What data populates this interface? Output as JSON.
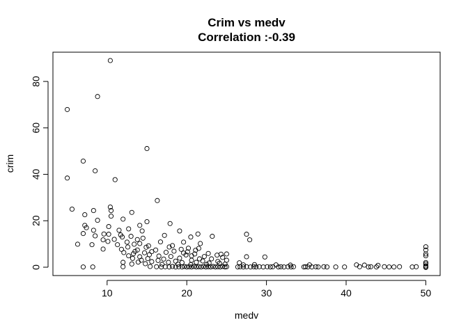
{
  "chart_data": {
    "type": "scatter",
    "title": "Crim vs medv",
    "subtitle": "Correlation :-0.39",
    "xlabel": "medv",
    "ylabel": "crim",
    "xlim": [
      3.2,
      51.8
    ],
    "ylim": [
      -3.6,
      92.6
    ],
    "x_ticks": [
      10,
      20,
      30,
      40,
      50
    ],
    "y_ticks": [
      0,
      20,
      40,
      60,
      80
    ],
    "x_tick_labels": [
      "10",
      "20",
      "30",
      "40",
      "50"
    ],
    "y_tick_labels": [
      "0",
      "20",
      "40",
      "60",
      "80"
    ],
    "grid": false,
    "legend": "none",
    "marker": "open-circle",
    "point_color": "#000000",
    "points": [
      [
        10.4,
        89.0
      ],
      [
        8.8,
        73.5
      ],
      [
        5.0,
        67.9
      ],
      [
        15.0,
        51.1
      ],
      [
        7.0,
        45.7
      ],
      [
        8.5,
        41.5
      ],
      [
        5.0,
        38.4
      ],
      [
        11.0,
        37.7
      ],
      [
        16.3,
        28.7
      ],
      [
        5.6,
        25.0
      ],
      [
        10.4,
        25.9
      ],
      [
        10.5,
        24.4
      ],
      [
        8.3,
        24.4
      ],
      [
        13.1,
        23.6
      ],
      [
        7.2,
        22.6
      ],
      [
        10.5,
        22.0
      ],
      [
        8.8,
        20.2
      ],
      [
        12.0,
        20.7
      ],
      [
        15.0,
        19.6
      ],
      [
        17.9,
        18.8
      ],
      [
        7.2,
        18.0
      ],
      [
        14.1,
        18.0
      ],
      [
        10.2,
        17.5
      ],
      [
        7.4,
        17.0
      ],
      [
        12.7,
        16.5
      ],
      [
        8.3,
        15.9
      ],
      [
        11.5,
        15.9
      ],
      [
        14.4,
        15.6
      ],
      [
        19.1,
        15.6
      ],
      [
        7.0,
        14.5
      ],
      [
        9.6,
        14.3
      ],
      [
        10.2,
        14.2
      ],
      [
        11.7,
        13.9
      ],
      [
        17.2,
        13.7
      ],
      [
        21.4,
        14.3
      ],
      [
        27.5,
        14.2
      ],
      [
        8.5,
        13.5
      ],
      [
        11.9,
        13.0
      ],
      [
        13.0,
        13.3
      ],
      [
        20.5,
        13.0
      ],
      [
        23.2,
        13.3
      ],
      [
        10.9,
        12.0
      ],
      [
        14.5,
        12.5
      ],
      [
        9.5,
        11.8
      ],
      [
        13.8,
        11.9
      ],
      [
        27.9,
        11.8
      ],
      [
        10.1,
        11.1
      ],
      [
        12.5,
        10.8
      ],
      [
        14.1,
        10.2
      ],
      [
        16.7,
        10.9
      ],
      [
        19.6,
        10.8
      ],
      [
        21.7,
        10.2
      ],
      [
        6.3,
        9.9
      ],
      [
        8.1,
        9.7
      ],
      [
        11.3,
        9.7
      ],
      [
        13.4,
        9.9
      ],
      [
        15.2,
        9.2
      ],
      [
        18.2,
        9.3
      ],
      [
        12.6,
        8.7
      ],
      [
        14.9,
        8.6
      ],
      [
        17.8,
        8.7
      ],
      [
        20.2,
        8.2
      ],
      [
        21.5,
        8.1
      ],
      [
        9.5,
        7.8
      ],
      [
        11.8,
        7.7
      ],
      [
        13.8,
        7.4
      ],
      [
        16.1,
        7.4
      ],
      [
        19.3,
        7.7
      ],
      [
        21.1,
        7.3
      ],
      [
        13.5,
        6.8
      ],
      [
        15.6,
        6.7
      ],
      [
        18.4,
        6.9
      ],
      [
        20.1,
        6.6
      ],
      [
        12.1,
        6.3
      ],
      [
        14.7,
        6.2
      ],
      [
        17.4,
        6.4
      ],
      [
        19.6,
        6.1
      ],
      [
        22.7,
        5.9
      ],
      [
        24.3,
        5.6
      ],
      [
        13.3,
        5.8
      ],
      [
        15.3,
        5.4
      ],
      [
        19.9,
        5.3
      ],
      [
        21.0,
        5.7
      ],
      [
        23.8,
        5.2
      ],
      [
        25.0,
        5.7
      ],
      [
        12.7,
        4.9
      ],
      [
        14.1,
        4.5
      ],
      [
        16.5,
        4.8
      ],
      [
        18.0,
        4.6
      ],
      [
        20.6,
        4.9
      ],
      [
        22.2,
        4.6
      ],
      [
        24.5,
        4.2
      ],
      [
        27.5,
        4.5
      ],
      [
        29.8,
        4.4
      ],
      [
        13.2,
        3.8
      ],
      [
        15.1,
        3.7
      ],
      [
        17.1,
        3.5
      ],
      [
        19.1,
        3.9
      ],
      [
        21.6,
        3.6
      ],
      [
        23.1,
        3.6
      ],
      [
        14.3,
        3.0
      ],
      [
        16.4,
        2.9
      ],
      [
        18.6,
        2.6
      ],
      [
        20.6,
        3.0
      ],
      [
        22.0,
        2.7
      ],
      [
        23.9,
        2.5
      ],
      [
        25.0,
        3.0
      ],
      [
        12.0,
        2.1
      ],
      [
        13.9,
        2.2
      ],
      [
        15.6,
        2.4
      ],
      [
        17.7,
        2.1
      ],
      [
        19.4,
        2.0
      ],
      [
        21.2,
        2.1
      ],
      [
        22.8,
        1.8
      ],
      [
        24.1,
        1.7
      ],
      [
        26.6,
        1.9
      ],
      [
        13.1,
        1.4
      ],
      [
        14.8,
        1.5
      ],
      [
        16.9,
        1.2
      ],
      [
        18.9,
        1.3
      ],
      [
        20.5,
        1.1
      ],
      [
        22.5,
        1.2
      ],
      [
        24.8,
        1.3
      ],
      [
        27.1,
        1.0
      ],
      [
        28.5,
        1.1
      ],
      [
        31.2,
        1.0
      ],
      [
        33.0,
        0.9
      ],
      [
        35.4,
        1.0
      ],
      [
        41.3,
        1.0
      ],
      [
        42.3,
        0.9
      ],
      [
        44.0,
        0.8
      ],
      [
        50.0,
        8.8
      ],
      [
        50.0,
        7.4
      ],
      [
        50.0,
        5.7
      ],
      [
        50.0,
        4.9
      ],
      [
        50.0,
        2.0
      ],
      [
        50.0,
        1.4
      ],
      [
        50.0,
        0.6
      ],
      [
        50.0,
        0.2
      ],
      [
        7.0,
        0.1
      ],
      [
        8.2,
        0.1
      ],
      [
        12.0,
        0.2
      ],
      [
        15.4,
        0.3
      ],
      [
        16.2,
        0.2
      ],
      [
        16.8,
        0.1
      ],
      [
        17.3,
        0.2
      ],
      [
        17.8,
        0.1
      ],
      [
        18.2,
        0.3
      ],
      [
        18.6,
        0.1
      ],
      [
        19.0,
        0.2
      ],
      [
        19.4,
        0.1
      ],
      [
        19.7,
        0.3
      ],
      [
        20.0,
        0.1
      ],
      [
        20.3,
        0.2
      ],
      [
        20.6,
        0.1
      ],
      [
        20.9,
        0.3
      ],
      [
        21.2,
        0.1
      ],
      [
        21.5,
        0.2
      ],
      [
        21.8,
        0.1
      ],
      [
        22.1,
        0.3
      ],
      [
        22.4,
        0.1
      ],
      [
        22.7,
        0.2
      ],
      [
        23.0,
        0.1
      ],
      [
        23.3,
        0.3
      ],
      [
        23.6,
        0.1
      ],
      [
        23.9,
        0.2
      ],
      [
        24.2,
        0.1
      ],
      [
        24.5,
        0.3
      ],
      [
        24.8,
        0.1
      ],
      [
        25.0,
        0.2
      ],
      [
        26.4,
        0.1
      ],
      [
        26.7,
        0.2
      ],
      [
        27.1,
        0.1
      ],
      [
        27.5,
        0.2
      ],
      [
        28.0,
        0.1
      ],
      [
        28.4,
        0.2
      ],
      [
        28.7,
        0.1
      ],
      [
        29.1,
        0.2
      ],
      [
        29.6,
        0.1
      ],
      [
        30.1,
        0.2
      ],
      [
        30.5,
        0.1
      ],
      [
        30.8,
        0.2
      ],
      [
        31.5,
        0.1
      ],
      [
        31.8,
        0.2
      ],
      [
        32.2,
        0.1
      ],
      [
        32.7,
        0.2
      ],
      [
        33.1,
        0.1
      ],
      [
        33.4,
        0.2
      ],
      [
        34.7,
        0.1
      ],
      [
        34.9,
        0.2
      ],
      [
        35.2,
        0.1
      ],
      [
        35.7,
        0.1
      ],
      [
        36.2,
        0.2
      ],
      [
        36.5,
        0.1
      ],
      [
        37.2,
        0.2
      ],
      [
        37.6,
        0.1
      ],
      [
        38.7,
        0.1
      ],
      [
        39.8,
        0.1
      ],
      [
        41.7,
        0.2
      ],
      [
        42.8,
        0.1
      ],
      [
        43.1,
        0.2
      ],
      [
        43.8,
        0.1
      ],
      [
        44.8,
        0.2
      ],
      [
        45.4,
        0.1
      ],
      [
        46.0,
        0.1
      ],
      [
        46.7,
        0.2
      ],
      [
        48.3,
        0.1
      ],
      [
        48.8,
        0.2
      ],
      [
        50.0,
        -0.1
      ]
    ]
  }
}
